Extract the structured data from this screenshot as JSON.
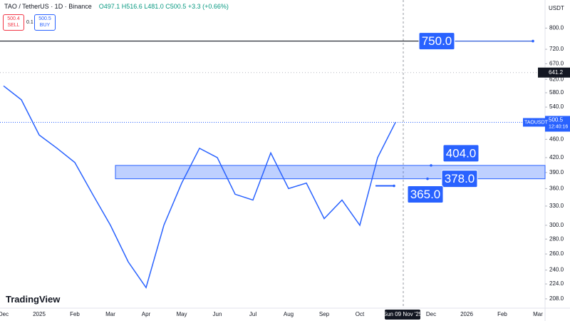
{
  "header": {
    "symbol": "TAO / TetherUS · 1D · Binance",
    "ohlc": "O497.1 H516.6 L481.0 C500.5 +3.3 (+0.66%)",
    "sell_price": "500.4",
    "sell": "SELL",
    "spread": "0.1",
    "buy_price": "500.5",
    "buy": "BUY",
    "logo": "TradingView"
  },
  "chart_data": {
    "type": "line",
    "currency": "USDT",
    "log_scale": true,
    "color": "#2962ff",
    "categories": [
      "Dec",
      null,
      "2025",
      null,
      "Feb",
      null,
      "Mar",
      null,
      "Apr",
      null,
      "May",
      null,
      "Jun",
      null,
      "Jul",
      null,
      "Aug",
      null,
      "Sep",
      null,
      "Oct",
      null,
      "Sun 09 Nov '25",
      null,
      "Dec",
      null,
      "2026",
      null,
      "Feb",
      null,
      "Mar"
    ],
    "series": [
      {
        "name": "TAOUSDT",
        "color": "#2962ff",
        "values": [
          600,
          560,
          470,
          440,
          410,
          350,
          300,
          250,
          220,
          300,
          370,
          440,
          420,
          350,
          340,
          430,
          360,
          370,
          310,
          340,
          300,
          420,
          500.5,
          null,
          null,
          null,
          null,
          null,
          null,
          null,
          null
        ]
      }
    ],
    "ylim": [
      200,
      920
    ],
    "yticks": [
      {
        "value": 800,
        "label": "800.0"
      },
      {
        "value": 720,
        "label": "720.0"
      },
      {
        "value": 670,
        "label": "670.0"
      },
      {
        "value": 620,
        "label": "620.0"
      },
      {
        "value": 580,
        "label": "580.0"
      },
      {
        "value": 540,
        "label": "540.0"
      },
      {
        "value": 460,
        "label": "460.0"
      },
      {
        "value": 420,
        "label": "420.0"
      },
      {
        "value": 390,
        "label": "390.0"
      },
      {
        "value": 360,
        "label": "360.0"
      },
      {
        "value": 330,
        "label": "330.0"
      },
      {
        "value": 300,
        "label": "300.0"
      },
      {
        "value": 280,
        "label": "280.0"
      },
      {
        "value": 260,
        "label": "260.0"
      },
      {
        "value": 240,
        "label": "240.0"
      },
      {
        "value": 224,
        "label": "224.0"
      },
      {
        "value": 208,
        "label": "208.0"
      }
    ],
    "levels": {
      "values": [
        750,
        404,
        378,
        365
      ],
      "value_labels": [
        "750.0",
        "404.0",
        "378.0",
        "365.0"
      ]
    },
    "high_marker": {
      "value": 641.2,
      "label": "641.2"
    },
    "last_price": {
      "value": 500.5,
      "label": "500.5",
      "countdown": "12:40:16"
    }
  }
}
